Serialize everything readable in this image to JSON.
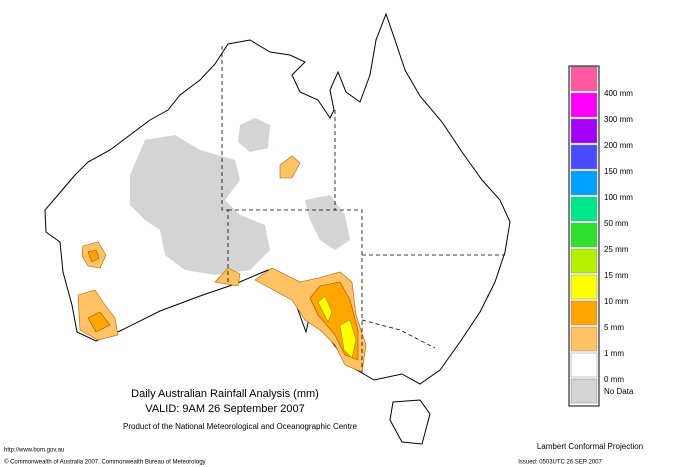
{
  "legend": {
    "colors": [
      "#ff5aa0",
      "#ff00ff",
      "#a400ff",
      "#4a4aff",
      "#00a0ff",
      "#00e68c",
      "#2fe02f",
      "#b4f000",
      "#ffff00",
      "#ffa500",
      "#ffc264",
      "#ffffff",
      "#d4d4d4"
    ],
    "labels": [
      "400 mm",
      "300 mm",
      "200 mm",
      "150 mm",
      "100 mm",
      "50 mm",
      "25 mm",
      "15 mm",
      "10 mm",
      "5 mm",
      "1 mm",
      "0 mm",
      "No Data"
    ]
  },
  "title": {
    "line1": "Daily Australian Rainfall Analysis (mm)",
    "line2": "VALID: 9AM 26 September 2007",
    "line3": "Product of the National Meteorological and Oceanographic Centre"
  },
  "footer": {
    "url": "http://www.bom.gov.au",
    "copyright": "© Commonwealth of Australia 2007, Commonwealth Bureau of Meteorology",
    "projection": "Lambert Conformal Projection",
    "issued": "Issued: 0503UTC 26 SEP 2007"
  }
}
